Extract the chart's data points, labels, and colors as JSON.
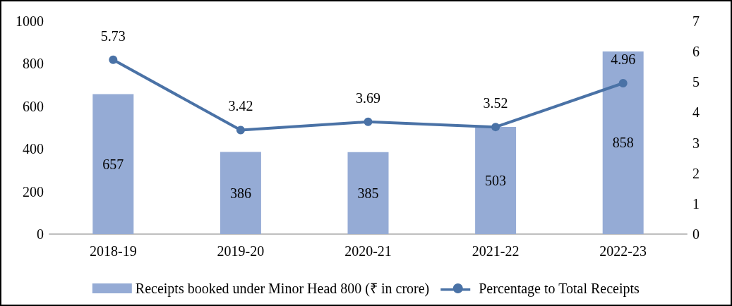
{
  "chart_data": {
    "type": "bar",
    "categories": [
      "2018-19",
      "2019-20",
      "2020-21",
      "2021-22",
      "2022-23"
    ],
    "series": [
      {
        "name": "Receipts booked under Minor Head 800 (₹ in crore)",
        "color": "#95abd5",
        "values": [
          657,
          386,
          385,
          503,
          858
        ]
      },
      {
        "name": "Percentage to Total Receipts",
        "type": "line",
        "axis": "y2",
        "color": "#4a72a6",
        "values": [
          5.73,
          3.42,
          3.69,
          3.52,
          4.96
        ],
        "marker": "circle",
        "line_style": "solid"
      }
    ],
    "ylim": [
      0,
      1000
    ],
    "yticks": [
      0,
      200,
      400,
      600,
      800,
      1000
    ],
    "y2lim": [
      0,
      7
    ],
    "y2ticks": [
      0,
      1,
      2,
      3,
      4,
      5,
      6,
      7
    ],
    "data_labels": true,
    "grid": false,
    "legend": "bottom"
  }
}
